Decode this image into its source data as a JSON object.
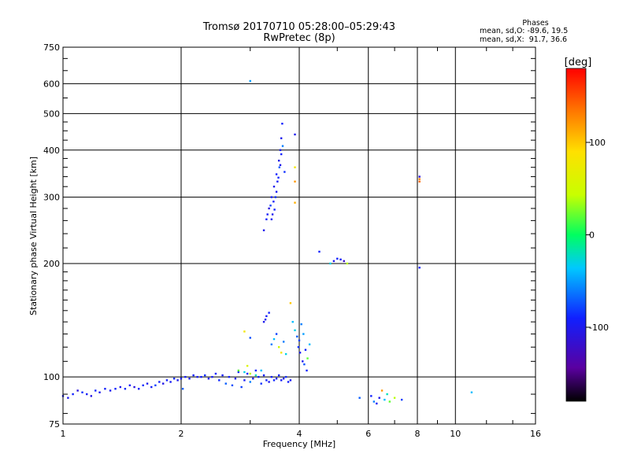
{
  "title": {
    "line1": "Tromsø 20170710 05:28:00–05:29:43",
    "line2": "RwPretec (8p)"
  },
  "phases": {
    "heading": "Phases",
    "line_o": "mean, sd,O: -89.6, 19.5",
    "line_x": "mean, sd,X:  91.7, 36.6"
  },
  "colorbar": {
    "unit": "[deg]",
    "range": [
      -180,
      180
    ],
    "ticks": [
      "100",
      "0",
      "-100"
    ],
    "tick_values": [
      100,
      0,
      -100
    ]
  },
  "chart_data": {
    "type": "scatter",
    "xlabel": "Frequency [MHz]",
    "ylabel": "Stationary phase Virtual Height [km]",
    "x_scale": "log2",
    "y_scale": "log",
    "xlim": [
      1,
      16
    ],
    "ylim": [
      75,
      750
    ],
    "x_ticks": [
      {
        "v": 1,
        "label": "1"
      },
      {
        "v": 2,
        "label": "2"
      },
      {
        "v": 4,
        "label": "4"
      },
      {
        "v": 6,
        "label": "6"
      },
      {
        "v": 8,
        "label": "8"
      },
      {
        "v": 10,
        "label": "10"
      },
      {
        "v": 16,
        "label": "16"
      }
    ],
    "y_ticks": [
      {
        "v": 75,
        "label": "75"
      },
      {
        "v": 100,
        "label": "100"
      },
      {
        "v": 200,
        "label": "200"
      },
      {
        "v": 300,
        "label": "300"
      },
      {
        "v": 400,
        "label": "400"
      },
      {
        "v": 500,
        "label": "500"
      },
      {
        "v": 600,
        "label": "600"
      },
      {
        "v": 750,
        "label": "750"
      }
    ],
    "grid": true,
    "points": [
      [
        1.0,
        89,
        -95
      ],
      [
        1.03,
        88,
        -100
      ],
      [
        1.06,
        90,
        -90
      ],
      [
        1.09,
        92,
        -110
      ],
      [
        1.12,
        91,
        -85
      ],
      [
        1.15,
        90,
        -95
      ],
      [
        1.18,
        89,
        -105
      ],
      [
        1.21,
        92,
        -88
      ],
      [
        1.24,
        91,
        -100
      ],
      [
        1.28,
        93,
        -92
      ],
      [
        1.32,
        92,
        -98
      ],
      [
        1.36,
        93,
        -90
      ],
      [
        1.4,
        94,
        -102
      ],
      [
        1.44,
        93,
        -88
      ],
      [
        1.48,
        95,
        -95
      ],
      [
        1.52,
        94,
        -108
      ],
      [
        1.56,
        93,
        -92
      ],
      [
        1.6,
        95,
        -86
      ],
      [
        1.64,
        96,
        -100
      ],
      [
        1.68,
        94,
        -94
      ],
      [
        1.72,
        95,
        -80
      ],
      [
        1.76,
        97,
        -92
      ],
      [
        1.8,
        96,
        -104
      ],
      [
        1.84,
        98,
        -90
      ],
      [
        1.88,
        97,
        -96
      ],
      [
        1.92,
        99,
        -88
      ],
      [
        1.96,
        98,
        -100
      ],
      [
        2.0,
        99,
        -94
      ],
      [
        2.02,
        93,
        -70
      ],
      [
        2.05,
        100,
        -92
      ],
      [
        2.1,
        99,
        -98
      ],
      [
        2.15,
        101,
        -90
      ],
      [
        2.2,
        100,
        -96
      ],
      [
        2.25,
        100,
        -92
      ],
      [
        2.3,
        101,
        -86
      ],
      [
        2.35,
        99,
        -100
      ],
      [
        2.4,
        100,
        -94
      ],
      [
        2.45,
        102,
        -90
      ],
      [
        2.5,
        98,
        -88
      ],
      [
        2.55,
        101,
        -95
      ],
      [
        2.6,
        96,
        -70
      ],
      [
        2.65,
        100,
        -92
      ],
      [
        2.7,
        95,
        -75
      ],
      [
        2.75,
        99,
        -100
      ],
      [
        2.8,
        103,
        -90
      ],
      [
        2.85,
        94,
        -80
      ],
      [
        2.9,
        98,
        -95
      ],
      [
        2.95,
        102,
        -92
      ],
      [
        3.0,
        97,
        -60
      ],
      [
        3.05,
        99,
        -98
      ],
      [
        3.1,
        104,
        -90
      ],
      [
        3.15,
        100,
        -88
      ],
      [
        3.2,
        96,
        -85
      ],
      [
        3.25,
        101,
        -94
      ],
      [
        3.3,
        98,
        -90
      ],
      [
        3.35,
        97,
        -100
      ],
      [
        3.4,
        100,
        -92
      ],
      [
        3.45,
        98,
        -88
      ],
      [
        3.5,
        99,
        -96
      ],
      [
        3.55,
        101,
        -90
      ],
      [
        3.6,
        98,
        -94
      ],
      [
        3.65,
        99,
        -100
      ],
      [
        3.7,
        100,
        -86
      ],
      [
        3.75,
        97,
        -92
      ],
      [
        3.8,
        98,
        -98
      ],
      [
        2.8,
        104,
        20
      ],
      [
        2.9,
        103,
        -30
      ],
      [
        3.0,
        102,
        40
      ],
      [
        3.1,
        101,
        -20
      ],
      [
        2.95,
        107,
        60
      ],
      [
        3.2,
        104,
        -40
      ],
      [
        3.25,
        140,
        -100
      ],
      [
        3.3,
        145,
        -95
      ],
      [
        3.35,
        148,
        -90
      ],
      [
        3.28,
        142,
        -98
      ],
      [
        2.9,
        132,
        80
      ],
      [
        3.0,
        127,
        -75
      ],
      [
        3.4,
        122,
        -60
      ],
      [
        3.45,
        126,
        -40
      ],
      [
        3.5,
        130,
        -80
      ],
      [
        3.55,
        120,
        50
      ],
      [
        3.6,
        116,
        80
      ],
      [
        3.65,
        124,
        -60
      ],
      [
        3.7,
        115,
        -30
      ],
      [
        3.8,
        157,
        100
      ],
      [
        3.85,
        140,
        -40
      ],
      [
        3.9,
        133,
        -30
      ],
      [
        3.95,
        128,
        -70
      ],
      [
        4.0,
        125,
        -80
      ],
      [
        4.05,
        138,
        -60
      ],
      [
        4.1,
        130,
        -50
      ],
      [
        4.15,
        118,
        -90
      ],
      [
        4.2,
        112,
        20
      ],
      [
        4.25,
        122,
        -40
      ],
      [
        3.98,
        120,
        -85
      ],
      [
        4.02,
        116,
        -95
      ],
      [
        4.08,
        110,
        -100
      ],
      [
        4.12,
        108,
        -75
      ],
      [
        4.18,
        104,
        -88
      ],
      [
        3.25,
        245,
        -100
      ],
      [
        3.3,
        262,
        -90
      ],
      [
        3.35,
        280,
        -110
      ],
      [
        3.4,
        300,
        -95
      ],
      [
        3.45,
        320,
        -100
      ],
      [
        3.5,
        345,
        -90
      ],
      [
        3.55,
        375,
        -105
      ],
      [
        3.58,
        400,
        -95
      ],
      [
        3.6,
        430,
        -100
      ],
      [
        3.62,
        470,
        -90
      ],
      [
        3.38,
        285,
        -80
      ],
      [
        3.42,
        270,
        -100
      ],
      [
        3.48,
        300,
        -85
      ],
      [
        3.52,
        330,
        -95
      ],
      [
        3.56,
        360,
        -70
      ],
      [
        3.6,
        390,
        -90
      ],
      [
        3.63,
        410,
        -60
      ],
      [
        3.67,
        350,
        -85
      ],
      [
        3.32,
        270,
        -95
      ],
      [
        3.44,
        292,
        -92
      ],
      [
        3.5,
        310,
        -98
      ],
      [
        3.54,
        338,
        -88
      ],
      [
        3.58,
        365,
        -102
      ],
      [
        3.46,
        278,
        -90
      ],
      [
        3.4,
        262,
        -96
      ],
      [
        3.9,
        440,
        -100
      ],
      [
        3.9,
        330,
        120
      ],
      [
        3.9,
        290,
        110
      ],
      [
        3.9,
        360,
        80
      ],
      [
        4.5,
        215,
        -90
      ],
      [
        4.8,
        200,
        -30
      ],
      [
        4.9,
        203,
        -100
      ],
      [
        5.0,
        206,
        -90
      ],
      [
        5.1,
        205,
        -95
      ],
      [
        5.2,
        203,
        -120
      ],
      [
        5.3,
        200,
        40
      ],
      [
        8.1,
        340,
        -110
      ],
      [
        8.1,
        335,
        130
      ],
      [
        8.1,
        195,
        -90
      ],
      [
        8.1,
        330,
        140
      ],
      [
        6.1,
        89,
        -90
      ],
      [
        6.2,
        86,
        -60
      ],
      [
        6.3,
        85,
        -95
      ],
      [
        6.4,
        88,
        -100
      ],
      [
        6.6,
        87,
        -40
      ],
      [
        6.7,
        90,
        -20
      ],
      [
        6.8,
        86,
        20
      ],
      [
        7.0,
        88,
        40
      ],
      [
        7.3,
        87,
        -80
      ],
      [
        5.7,
        88,
        -70
      ],
      [
        6.5,
        92,
        120
      ],
      [
        11.0,
        91,
        -40
      ],
      [
        3.0,
        610,
        -50
      ]
    ]
  }
}
